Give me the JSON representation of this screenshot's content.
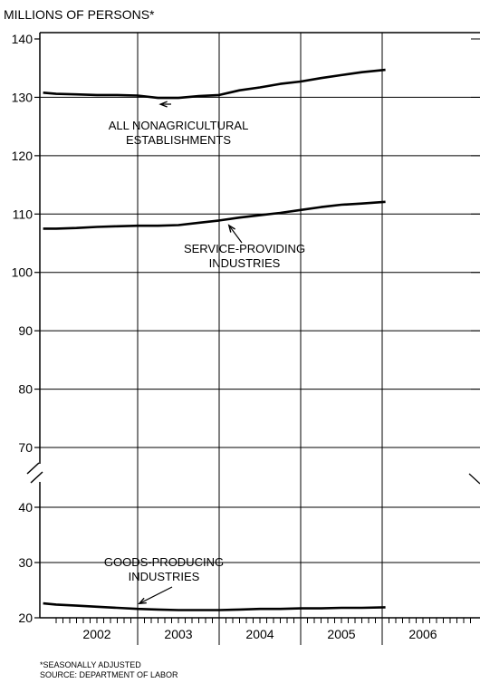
{
  "chart_data": {
    "type": "line",
    "title": "MILLIONS OF PERSONS*",
    "xlabel": "",
    "ylabel": "",
    "y_ticks": [
      20,
      30,
      40,
      70,
      80,
      90,
      100,
      110,
      120,
      130,
      140
    ],
    "y_break": [
      40,
      70
    ],
    "xlim": [
      2001.8,
      2007.2
    ],
    "x_year_labels": [
      "2002",
      "2003",
      "2004",
      "2005",
      "2006"
    ],
    "x_year_positions": [
      2002.5,
      2003.5,
      2004.5,
      2005.5,
      2006.5
    ],
    "grid": true,
    "legend": "none",
    "line_color": "#000000",
    "series": [
      {
        "name": "ALL NONAGRICULTURAL ESTABLISHMENTS",
        "x": [
          2001.84,
          2002.0,
          2002.25,
          2002.5,
          2002.75,
          2003.0,
          2003.25,
          2003.5,
          2003.75,
          2004.0,
          2004.25,
          2004.5,
          2004.75,
          2005.0,
          2005.25,
          2005.5,
          2005.75,
          2006.04
        ],
        "values": [
          130.8,
          130.6,
          130.5,
          130.4,
          130.4,
          130.3,
          129.9,
          129.9,
          130.2,
          130.4,
          131.2,
          131.7,
          132.3,
          132.7,
          133.3,
          133.8,
          134.3,
          134.7
        ]
      },
      {
        "name": "SERVICE-PROVIDING INDUSTRIES",
        "x": [
          2001.84,
          2002.0,
          2002.25,
          2002.5,
          2002.75,
          2003.0,
          2003.25,
          2003.5,
          2003.75,
          2004.0,
          2004.25,
          2004.5,
          2004.75,
          2005.0,
          2005.25,
          2005.5,
          2005.75,
          2006.04
        ],
        "values": [
          107.5,
          107.5,
          107.6,
          107.8,
          107.9,
          108.0,
          108.0,
          108.1,
          108.5,
          108.9,
          109.4,
          109.8,
          110.2,
          110.7,
          111.2,
          111.6,
          111.8,
          112.1
        ]
      },
      {
        "name": "GOODS-PRODUCING INDUSTRIES",
        "x": [
          2001.84,
          2002.0,
          2002.25,
          2002.5,
          2002.75,
          2003.0,
          2003.25,
          2003.5,
          2003.75,
          2004.0,
          2004.25,
          2004.5,
          2004.75,
          2005.0,
          2005.25,
          2005.5,
          2005.75,
          2006.04
        ],
        "values": [
          22.6,
          22.4,
          22.2,
          22.0,
          21.8,
          21.6,
          21.5,
          21.4,
          21.4,
          21.4,
          21.5,
          21.6,
          21.6,
          21.7,
          21.7,
          21.8,
          21.8,
          21.9
        ]
      }
    ],
    "annotations": [
      {
        "lines": [
          "ALL NONAGRICULTURAL",
          "ESTABLISHMENTS"
        ],
        "target_series": 0,
        "target_x": 2003.28
      },
      {
        "lines": [
          "SERVICE-PROVIDING",
          "INDUSTRIES"
        ],
        "target_series": 1,
        "target_x": 2004.12
      },
      {
        "lines": [
          "GOODS-PRODUCING",
          "INDUSTRIES"
        ],
        "target_series": 2,
        "target_x": 2003.02
      }
    ],
    "footnotes": [
      "*SEASONALLY ADJUSTED",
      "SOURCE: DEPARTMENT OF LABOR"
    ]
  }
}
